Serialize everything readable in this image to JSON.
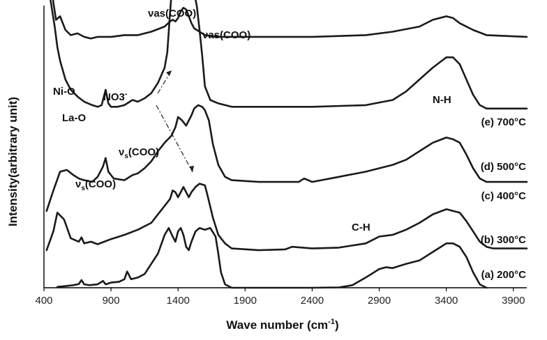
{
  "chart_data": {
    "type": "line",
    "title": "",
    "xlabel_main": "Wave number (cm",
    "xlabel_sup": "-1",
    "xlabel_close": ")",
    "ylabel": "Intensity(arbitrary unit)",
    "xlim": [
      400,
      4000
    ],
    "xticks": [
      400,
      900,
      1400,
      1900,
      2400,
      2900,
      3400,
      3900
    ],
    "y_axis": "arbitrary offsets, no tick labels",
    "grid": false,
    "legend": "series labels placed at right end of each trace",
    "series": [
      {
        "name": "(a) 200°C",
        "x": [
          500,
          560,
          620,
          660,
          680,
          700,
          740,
          800,
          840,
          860,
          900,
          960,
          1000,
          1020,
          1050,
          1100,
          1150,
          1200,
          1250,
          1300,
          1330,
          1360,
          1380,
          1400,
          1420,
          1440,
          1460,
          1480,
          1500,
          1530,
          1560,
          1600,
          1640,
          1680,
          1700,
          1720,
          1750,
          1800,
          1900,
          2000,
          2200,
          2400,
          2600,
          2700,
          2800,
          2900,
          2950,
          3000,
          3100,
          3200,
          3300,
          3400,
          3450,
          3500,
          3550,
          3600,
          3650,
          3700
        ],
        "y": [
          0.05,
          0.1,
          0.15,
          0.22,
          0.45,
          0.2,
          0.15,
          0.2,
          0.4,
          0.2,
          0.3,
          0.35,
          0.5,
          0.95,
          0.5,
          0.6,
          0.8,
          1.4,
          2.0,
          3.1,
          3.5,
          3.0,
          2.7,
          3.3,
          3.5,
          3.1,
          2.4,
          2.2,
          2.7,
          3.3,
          3.5,
          3.4,
          3.5,
          3.0,
          2.0,
          0.9,
          0.2,
          0.0,
          0.0,
          0.0,
          0.0,
          0.0,
          0.02,
          0.15,
          0.6,
          1.1,
          1.2,
          1.15,
          1.4,
          1.6,
          2.1,
          2.6,
          2.6,
          2.4,
          1.8,
          0.9,
          0.2,
          0.0
        ]
      },
      {
        "name": "(b) 300°C",
        "x": [
          420,
          470,
          500,
          550,
          600,
          660,
          680,
          700,
          750,
          800,
          850,
          900,
          1000,
          1100,
          1200,
          1250,
          1300,
          1340,
          1360,
          1380,
          1400,
          1420,
          1440,
          1460,
          1480,
          1500,
          1530,
          1560,
          1600,
          1620,
          1660,
          1700,
          1750,
          1800,
          2000,
          2200,
          2250,
          2400,
          2600,
          2800,
          2900,
          3000,
          3100,
          3200,
          3300,
          3400,
          3450,
          3500,
          3550,
          3600,
          3650,
          3700,
          3750,
          4000
        ],
        "y": [
          0.1,
          1.2,
          2.3,
          1.9,
          0.8,
          0.6,
          0.85,
          0.5,
          0.6,
          0.45,
          0.6,
          0.75,
          1.0,
          1.3,
          1.7,
          2.2,
          2.7,
          3.1,
          3.6,
          3.5,
          3.2,
          3.5,
          3.8,
          3.5,
          3.2,
          3.5,
          3.8,
          4.0,
          3.9,
          3.3,
          2.0,
          1.0,
          0.5,
          0.2,
          0.1,
          0.15,
          0.3,
          0.2,
          0.25,
          0.5,
          0.9,
          1.0,
          1.3,
          1.7,
          2.2,
          2.5,
          2.4,
          2.3,
          1.8,
          1.2,
          0.6,
          0.3,
          0.2,
          0.2
        ]
      },
      {
        "name": "(c) 400°C",
        "x": [
          420,
          470,
          520,
          570,
          620,
          660,
          700,
          760,
          800,
          840,
          860,
          880,
          920,
          1000,
          1060,
          1100,
          1150,
          1200,
          1250,
          1300,
          1350,
          1380,
          1400,
          1430,
          1460,
          1480,
          1500,
          1520,
          1550,
          1580,
          1600,
          1630,
          1660,
          1700,
          1750,
          1800,
          2000,
          2300,
          2340,
          2400,
          2600,
          2800,
          3000,
          3100,
          3200,
          3300,
          3400,
          3450,
          3500,
          3550,
          3600,
          3650,
          3700,
          3750,
          4000
        ],
        "y": [
          0.3,
          1.5,
          2.6,
          2.7,
          2.4,
          2.2,
          2.1,
          2.0,
          2.3,
          2.9,
          3.4,
          2.6,
          2.2,
          2.1,
          2.4,
          2.5,
          2.8,
          3.2,
          3.8,
          4.3,
          4.7,
          5.2,
          5.8,
          5.6,
          5.3,
          5.6,
          5.9,
          6.3,
          6.5,
          6.4,
          6.2,
          5.6,
          4.2,
          3.0,
          2.3,
          2.1,
          2.0,
          2.0,
          2.2,
          2.0,
          2.3,
          2.6,
          3.0,
          3.3,
          3.8,
          4.3,
          4.6,
          4.5,
          4.3,
          3.6,
          2.8,
          2.2,
          2.0,
          2.0,
          2.0
        ]
      },
      {
        "name": "(d) 500°C",
        "x": [
          420,
          450,
          480,
          500,
          520,
          560,
          600,
          650,
          700,
          760,
          800,
          830,
          860,
          880,
          900,
          950,
          1000,
          1060,
          1100,
          1150,
          1200,
          1250,
          1300,
          1320,
          1340,
          1360,
          1380,
          1400,
          1420,
          1440,
          1460,
          1480,
          1500,
          1520,
          1540,
          1560,
          1580,
          1600,
          1640,
          1700,
          1800,
          2000,
          2400,
          2800,
          3000,
          3100,
          3200,
          3300,
          3400,
          3450,
          3500,
          3550,
          3600,
          3650,
          3700,
          3750,
          4000
        ],
        "y": [
          12.5,
          10.5,
          9.0,
          7.8,
          7.0,
          5.9,
          5.3,
          4.9,
          4.6,
          4.4,
          4.3,
          4.4,
          5.3,
          4.5,
          4.3,
          4.3,
          4.4,
          4.7,
          4.6,
          4.8,
          5.1,
          5.7,
          6.6,
          7.5,
          9.8,
          11.8,
          12.1,
          11.5,
          11.0,
          10.6,
          11.4,
          11.9,
          11.7,
          11.0,
          10.2,
          8.8,
          7.3,
          5.5,
          4.7,
          4.5,
          4.3,
          4.3,
          4.3,
          4.4,
          4.7,
          5.2,
          5.9,
          6.6,
          7.2,
          7.2,
          6.8,
          5.9,
          5.0,
          4.4,
          4.2,
          4.2,
          4.2
        ]
      },
      {
        "name": "(e) 700°C",
        "x": [
          415,
          430,
          450,
          470,
          490,
          520,
          560,
          600,
          650,
          700,
          750,
          800,
          900,
          1000,
          1100,
          1200,
          1300,
          1340,
          1360,
          1380,
          1400,
          1420,
          1440,
          1460,
          1480,
          1500,
          1520,
          1560,
          1600,
          1700,
          2000,
          2400,
          2800,
          3000,
          3200,
          3300,
          3400,
          3450,
          3500,
          3600,
          3700,
          4000
        ],
        "y": [
          16.0,
          12.5,
          9.8,
          8.3,
          7.3,
          7.5,
          6.7,
          6.4,
          6.5,
          6.3,
          6.2,
          6.3,
          6.3,
          6.4,
          6.4,
          6.6,
          6.9,
          7.2,
          7.3,
          7.2,
          7.4,
          7.8,
          8.0,
          7.9,
          7.5,
          7.1,
          6.8,
          6.6,
          6.4,
          6.3,
          6.3,
          6.3,
          6.4,
          6.6,
          6.9,
          7.3,
          7.5,
          7.4,
          7.1,
          6.7,
          6.4,
          6.3
        ]
      }
    ],
    "annotations": {
      "vas1": "νas(COO)",
      "vas2": "νas(COO)",
      "nio": "Ni-O",
      "lao": "La-O",
      "no3": "NO3",
      "no3_sup": "-",
      "vs_nu": "ν",
      "vs_sub": "s",
      "vs_rest": "(COO)",
      "nh": "N-H",
      "ch": "C-H"
    }
  }
}
